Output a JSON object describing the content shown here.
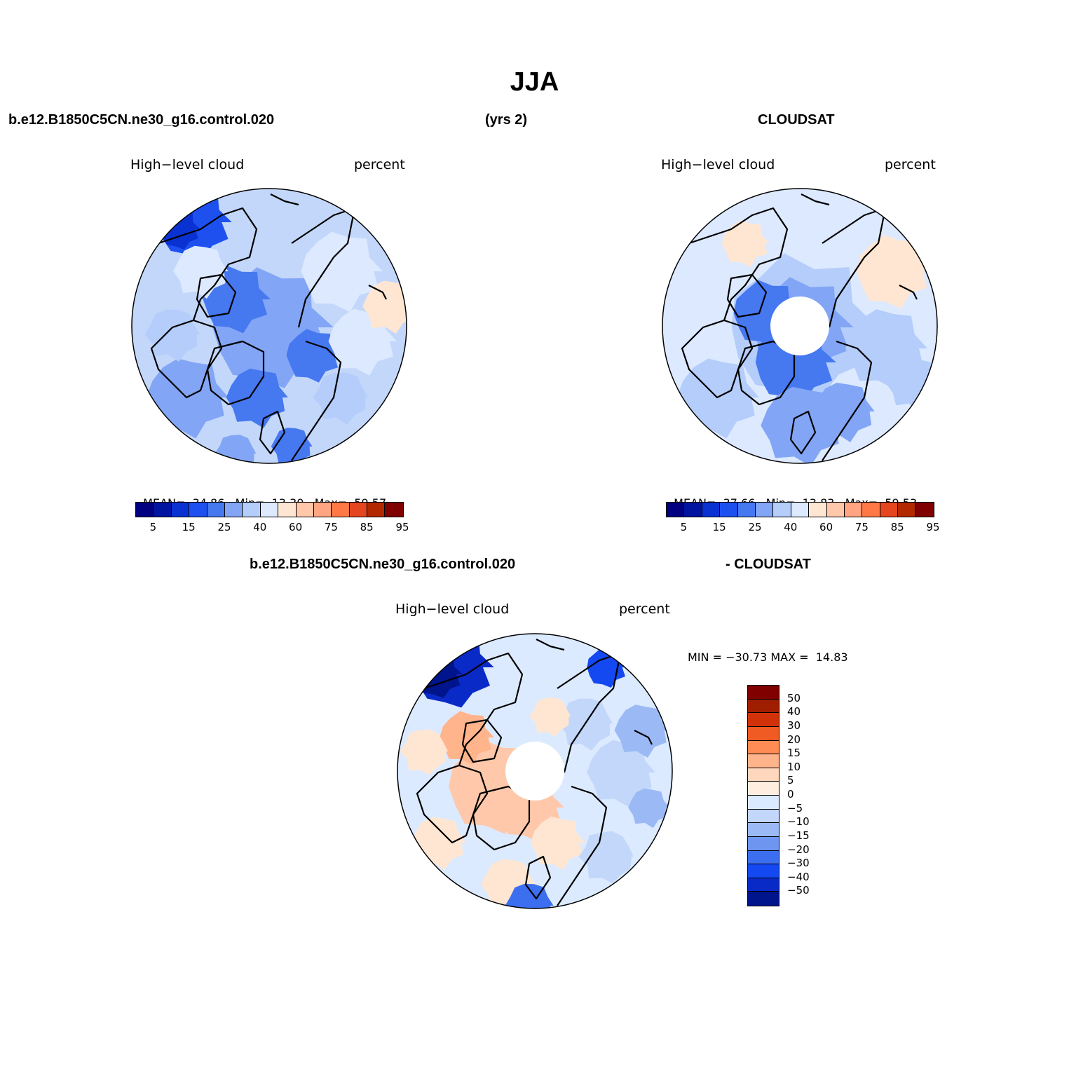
{
  "figure": {
    "title": "JJA",
    "header_left": "b.e12.B1850C5CN.ne30_g16.control.020",
    "header_mid": "(yrs 2)",
    "header_right": "CLOUDSAT",
    "diff_header_left": "b.e12.B1850C5CN.ne30_g16.control.020",
    "diff_header_right": "- CLOUDSAT"
  },
  "panels": [
    {
      "id": "model",
      "variable": "High−level cloud",
      "units": "percent",
      "stats_mean_label": "MEAN=",
      "stats_mean": "34.86",
      "stats_min_label": "Min=",
      "stats_min": "13.30",
      "stats_max_label": "Max=",
      "stats_max": "59.57",
      "has_polar_gap": false
    },
    {
      "id": "cloudsat",
      "variable": "High−level cloud",
      "units": "percent",
      "stats_mean_label": "MEAN=",
      "stats_mean": "37.66",
      "stats_min_label": "Min=",
      "stats_min": "13.83",
      "stats_max_label": "Max=",
      "stats_max": "59.53",
      "has_polar_gap": true
    },
    {
      "id": "difference",
      "variable": "High−level cloud",
      "units": "percent",
      "minmax_text": "MIN = −30.73 MAX =  14.83",
      "has_polar_gap": true
    }
  ],
  "colorbar_abs": {
    "colors": [
      "#000080",
      "#0014a0",
      "#0a32d2",
      "#1e50f0",
      "#4678f0",
      "#82a5f5",
      "#b4cdfa",
      "#dce9ff",
      "#ffe6d2",
      "#ffc8aa",
      "#ffa582",
      "#ff7846",
      "#e6461e",
      "#b42800",
      "#800000"
    ],
    "tick_labels": [
      "5",
      "15",
      "25",
      "40",
      "60",
      "75",
      "85",
      "95"
    ]
  },
  "colorbar_diff": {
    "colors_top_to_bottom": [
      "#800000",
      "#a01e00",
      "#d2320a",
      "#f05a23",
      "#ff8c55",
      "#ffb48c",
      "#ffd7bc",
      "#ffeedf",
      "#dceaff",
      "#c3d7fa",
      "#9bbaf5",
      "#6e96f0",
      "#3c6ef0",
      "#1448f0",
      "#0a2ac8",
      "#00148c"
    ],
    "tick_labels": [
      "50",
      "40",
      "30",
      "20",
      "15",
      "10",
      "5",
      "0",
      "−5",
      "−10",
      "−15",
      "−20",
      "−30",
      "−40",
      "−50"
    ]
  }
}
